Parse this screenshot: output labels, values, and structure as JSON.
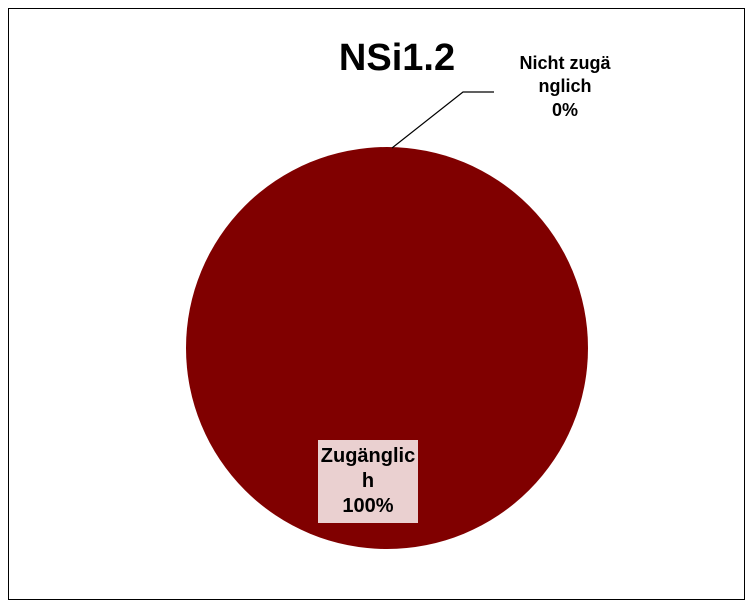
{
  "chart_data": {
    "type": "pie",
    "title": "NSi1.2",
    "categories": [
      "Zugänglich",
      "Nicht zugänglich"
    ],
    "values": [
      100,
      0
    ],
    "value_labels": [
      "100%",
      "0%"
    ],
    "colors": [
      "#800000",
      "#ffffff"
    ]
  }
}
